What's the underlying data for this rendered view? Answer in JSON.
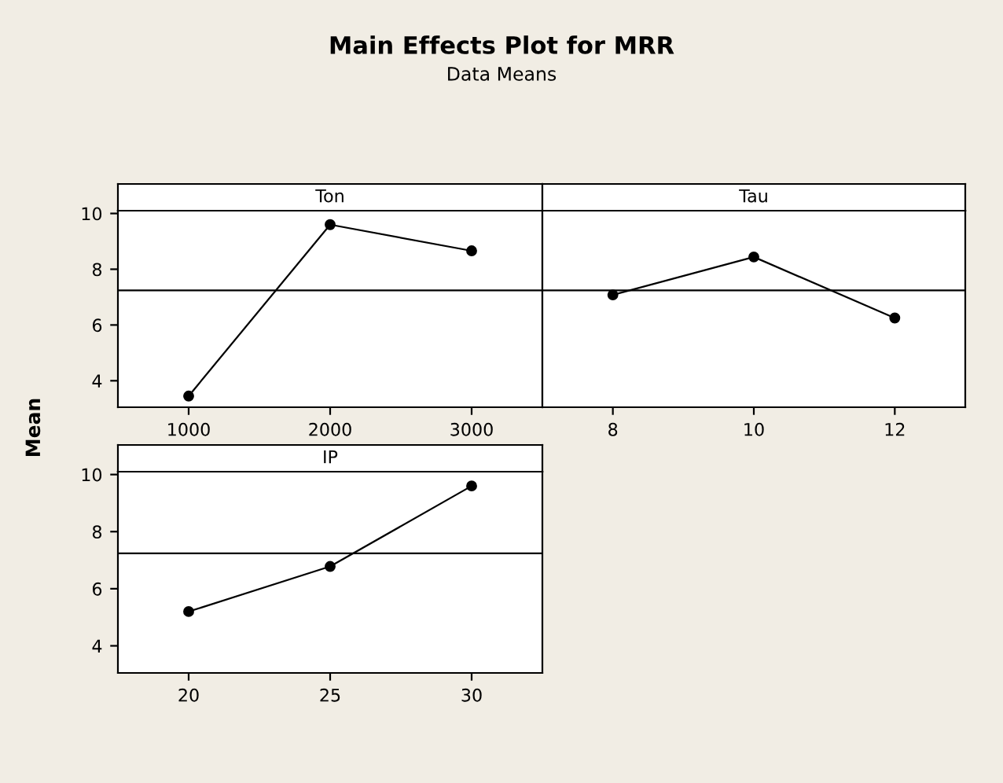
{
  "chart_data": [
    {
      "type": "line",
      "title": "Main Effects Plot for MRR",
      "subtitle": "Data Means",
      "ylabel": "Mean",
      "annotations": [
        "Ton"
      ],
      "x": [
        1000,
        2000,
        3000
      ],
      "series": [
        {
          "color": "#000000",
          "values": [
            3.45,
            9.6,
            8.66
          ]
        }
      ],
      "xlim": [
        500,
        3500
      ],
      "xticks": [
        1000,
        2000,
        3000
      ],
      "ylim": [
        3.05,
        10.1
      ],
      "yticks": [
        4,
        6,
        8,
        10
      ],
      "ref_lines": [
        {
          "axis": "y",
          "value": 7.24,
          "color": "#000000"
        }
      ],
      "marker": "circle",
      "line_style": "solid",
      "grid": false,
      "legend": false
    },
    {
      "type": "line",
      "annotations": [
        "Tau"
      ],
      "x": [
        8,
        10,
        12
      ],
      "series": [
        {
          "color": "#000000",
          "values": [
            7.08,
            8.44,
            6.25
          ]
        }
      ],
      "xlim": [
        7,
        13
      ],
      "xticks": [
        8,
        10,
        12
      ],
      "ylim": [
        3.05,
        10.1
      ],
      "yticks": [
        4,
        6,
        8,
        10
      ],
      "tick_labels": "x",
      "ref_lines": [
        {
          "axis": "y",
          "value": 7.24,
          "color": "#000000"
        }
      ],
      "marker": "circle",
      "line_style": "solid",
      "grid": false,
      "legend": false
    },
    {
      "type": "line",
      "annotations": [
        "IP"
      ],
      "x": [
        20,
        25,
        30
      ],
      "series": [
        {
          "color": "#000000",
          "values": [
            5.2,
            6.78,
            9.6
          ]
        }
      ],
      "xlim": [
        17.5,
        32.5
      ],
      "xticks": [
        20,
        25,
        30
      ],
      "ylim": [
        3.05,
        10.1
      ],
      "yticks": [
        4,
        6,
        8,
        10
      ],
      "ref_lines": [
        {
          "axis": "y",
          "value": 7.24,
          "color": "#000000"
        }
      ],
      "marker": "circle",
      "line_style": "solid",
      "grid": false,
      "legend": false
    }
  ]
}
